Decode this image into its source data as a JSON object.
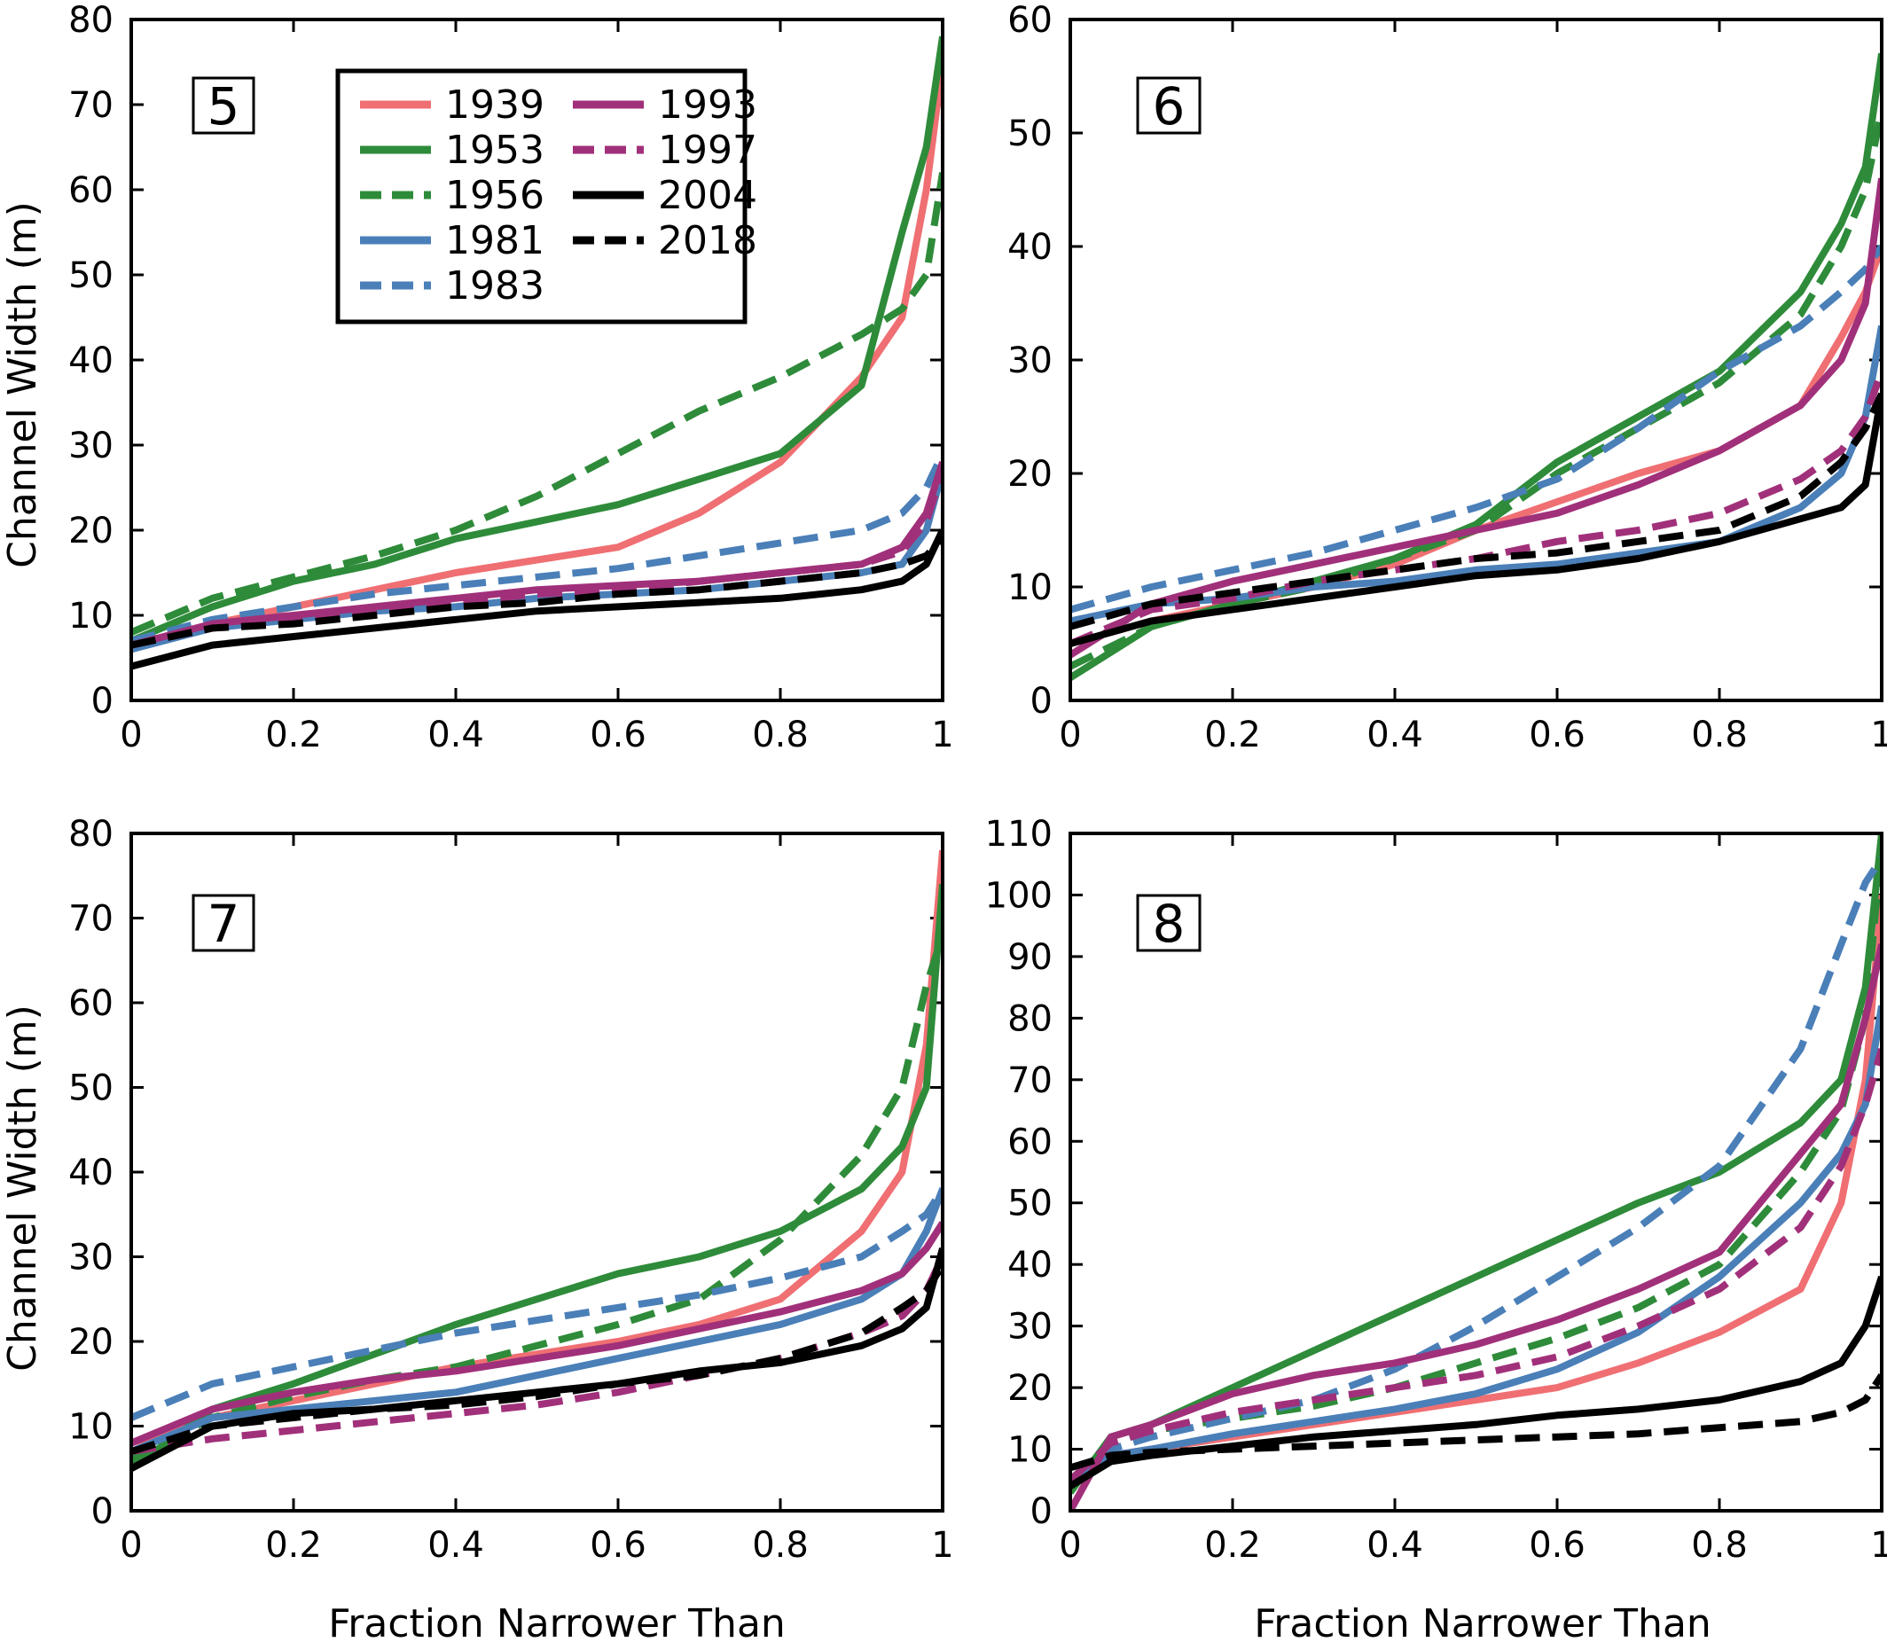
{
  "figure": {
    "xlabel": "Fraction Narrower Than",
    "ylabel": "Channel Width (m)"
  },
  "legend": {
    "entries": [
      {
        "year": "1939",
        "color": "#ef6f73",
        "dash": "solid"
      },
      {
        "year": "1953",
        "color": "#2e8b3a",
        "dash": "solid"
      },
      {
        "year": "1956",
        "color": "#2e8b3a",
        "dash": "dashed"
      },
      {
        "year": "1981",
        "color": "#4a7fb8",
        "dash": "solid"
      },
      {
        "year": "1983",
        "color": "#4a7fb8",
        "dash": "dashed"
      },
      {
        "year": "1993",
        "color": "#a1307a",
        "dash": "solid"
      },
      {
        "year": "1997",
        "color": "#a1307a",
        "dash": "dashed"
      },
      {
        "year": "2004",
        "color": "#000000",
        "dash": "solid"
      },
      {
        "year": "2018",
        "color": "#000000",
        "dash": "dashed"
      }
    ]
  },
  "chart_data": [
    {
      "type": "line",
      "panel_label": "5",
      "xlim": [
        0,
        1
      ],
      "ylim": [
        0,
        80
      ],
      "xticks": [
        "0",
        "0.2",
        "0.4",
        "0.6",
        "0.8",
        "1"
      ],
      "yticks": [
        "0",
        "10",
        "20",
        "30",
        "40",
        "50",
        "60",
        "70",
        "80"
      ],
      "xlabel": "",
      "ylabel": "Channel Width (m)",
      "x": [
        0,
        0.1,
        0.2,
        0.3,
        0.4,
        0.5,
        0.6,
        0.7,
        0.8,
        0.9,
        0.95,
        0.98,
        1.0
      ],
      "series": [
        {
          "name": "1939",
          "values": [
            6,
            9,
            11,
            13,
            15,
            16.5,
            18,
            22,
            28,
            38,
            45,
            60,
            75
          ]
        },
        {
          "name": "1953",
          "values": [
            7,
            11,
            14,
            16,
            19,
            21,
            23,
            26,
            29,
            37,
            55,
            65,
            78
          ]
        },
        {
          "name": "1956",
          "values": [
            8,
            12,
            14.5,
            17,
            20,
            24,
            29,
            34,
            38,
            43,
            46,
            50,
            62
          ]
        },
        {
          "name": "1981",
          "values": [
            6,
            8.5,
            9.5,
            10.5,
            11,
            12,
            12.5,
            13,
            14,
            15,
            16,
            20,
            27
          ]
        },
        {
          "name": "1983",
          "values": [
            7,
            9.5,
            11,
            12.5,
            13.5,
            14.5,
            15.5,
            17,
            18.5,
            20,
            22,
            25,
            29
          ]
        },
        {
          "name": "1993",
          "values": [
            6.5,
            9,
            10,
            11,
            12,
            13,
            13.5,
            14,
            15,
            16,
            18,
            22,
            28
          ]
        },
        {
          "name": "1997",
          "values": [
            6.5,
            8.5,
            9.5,
            10.5,
            11.5,
            12.5,
            13,
            14,
            15,
            16,
            17.5,
            21,
            27
          ]
        },
        {
          "name": "2004",
          "values": [
            4,
            6.5,
            7.5,
            8.5,
            9.5,
            10.5,
            11,
            11.5,
            12,
            13,
            14,
            16,
            20
          ]
        },
        {
          "name": "2018",
          "values": [
            6.5,
            8.5,
            9,
            10,
            11,
            11.5,
            12.5,
            13,
            14,
            15,
            16,
            17,
            19
          ]
        }
      ]
    },
    {
      "type": "line",
      "panel_label": "6",
      "xlim": [
        0,
        1
      ],
      "ylim": [
        0,
        60
      ],
      "xticks": [
        "0",
        "0.2",
        "0.4",
        "0.6",
        "0.8",
        "1"
      ],
      "yticks": [
        "0",
        "10",
        "20",
        "30",
        "40",
        "50",
        "60"
      ],
      "xlabel": "",
      "ylabel": "",
      "x": [
        0,
        0.1,
        0.2,
        0.3,
        0.4,
        0.5,
        0.6,
        0.7,
        0.8,
        0.9,
        0.95,
        0.98,
        1.0
      ],
      "series": [
        {
          "name": "1939",
          "values": [
            5,
            7,
            8.5,
            10,
            12,
            15,
            17.5,
            20,
            22,
            26,
            32,
            36,
            40
          ]
        },
        {
          "name": "1953",
          "values": [
            2,
            6.5,
            8.5,
            10.5,
            12.5,
            15.5,
            21,
            25,
            29,
            36,
            42,
            47,
            57
          ]
        },
        {
          "name": "1956",
          "values": [
            3,
            6.5,
            8.5,
            10,
            12.5,
            15,
            20,
            24,
            28,
            34,
            40,
            45,
            52
          ]
        },
        {
          "name": "1981",
          "values": [
            7,
            8.5,
            9,
            10,
            10.5,
            11.5,
            12,
            13,
            14,
            17,
            20,
            25,
            33
          ]
        },
        {
          "name": "1983",
          "values": [
            8,
            10,
            11.5,
            13,
            15,
            17,
            19.5,
            24,
            29,
            33,
            36,
            38,
            40
          ]
        },
        {
          "name": "1993",
          "values": [
            4,
            8.5,
            10.5,
            12,
            13.5,
            15,
            16.5,
            19,
            22,
            26,
            30,
            35,
            46
          ]
        },
        {
          "name": "1997",
          "values": [
            5,
            8,
            9,
            10.5,
            11.5,
            12.5,
            14,
            15,
            16.5,
            19.5,
            22,
            25,
            29
          ]
        },
        {
          "name": "2004",
          "values": [
            5,
            7,
            8,
            9,
            10,
            11,
            11.5,
            12.5,
            14,
            16,
            17,
            19,
            27
          ]
        },
        {
          "name": "2018",
          "values": [
            6.5,
            8.5,
            9.5,
            10.5,
            11.5,
            12.5,
            13,
            14,
            15,
            18,
            21,
            24,
            27
          ]
        }
      ]
    },
    {
      "type": "line",
      "panel_label": "7",
      "xlim": [
        0,
        1
      ],
      "ylim": [
        0,
        80
      ],
      "xticks": [
        "0",
        "0.2",
        "0.4",
        "0.6",
        "0.8",
        "1"
      ],
      "yticks": [
        "0",
        "10",
        "20",
        "30",
        "40",
        "50",
        "60",
        "70",
        "80"
      ],
      "xlabel": "Fraction Narrower Than",
      "ylabel": "Channel Width (m)",
      "x": [
        0,
        0.1,
        0.2,
        0.3,
        0.4,
        0.5,
        0.6,
        0.7,
        0.8,
        0.9,
        0.95,
        0.98,
        1.0
      ],
      "series": [
        {
          "name": "1939",
          "values": [
            8,
            11,
            13,
            15,
            17,
            18.5,
            20,
            22,
            25,
            33,
            40,
            55,
            78
          ]
        },
        {
          "name": "1953",
          "values": [
            5,
            12,
            15,
            18.5,
            22,
            25,
            28,
            30,
            33,
            38,
            43,
            50,
            74
          ]
        },
        {
          "name": "1956",
          "values": [
            6,
            11,
            13.5,
            15.5,
            17,
            19.5,
            22,
            25,
            32,
            42,
            50,
            62,
            68
          ]
        },
        {
          "name": "1981",
          "values": [
            7,
            11,
            12,
            13,
            14,
            16,
            18,
            20,
            22,
            25,
            28,
            33,
            38
          ]
        },
        {
          "name": "1983",
          "values": [
            11,
            15,
            17,
            19,
            21,
            22.5,
            24,
            25.5,
            27.5,
            30,
            33,
            35,
            38
          ]
        },
        {
          "name": "1993",
          "values": [
            8,
            12,
            14,
            15.5,
            16.5,
            18,
            19.5,
            21.5,
            23.5,
            26,
            28,
            31,
            34
          ]
        },
        {
          "name": "1997",
          "values": [
            7,
            8.5,
            9.5,
            10.5,
            11.5,
            12.5,
            14,
            16,
            18,
            21,
            23,
            26,
            30
          ]
        },
        {
          "name": "2004",
          "values": [
            5,
            10,
            11.5,
            12,
            13,
            14,
            15,
            16.5,
            17.5,
            19.5,
            21.5,
            24,
            31
          ]
        },
        {
          "name": "2018",
          "values": [
            7,
            10,
            11,
            12,
            12.5,
            13.5,
            15,
            16,
            18,
            21,
            24,
            26,
            29
          ]
        }
      ]
    },
    {
      "type": "line",
      "panel_label": "8",
      "xlim": [
        0,
        1
      ],
      "ylim": [
        0,
        110
      ],
      "xticks": [
        "0",
        "0.2",
        "0.4",
        "0.6",
        "0.8",
        "1"
      ],
      "yticks": [
        "0",
        "10",
        "20",
        "30",
        "40",
        "50",
        "60",
        "70",
        "80",
        "90",
        "100",
        "110"
      ],
      "xlabel": "Fraction Narrower Than",
      "ylabel": "",
      "x": [
        0,
        0.05,
        0.1,
        0.2,
        0.3,
        0.4,
        0.5,
        0.6,
        0.7,
        0.8,
        0.9,
        0.95,
        0.98,
        1.0
      ],
      "series": [
        {
          "name": "1939",
          "values": [
            5,
            9,
            10,
            12,
            14,
            16,
            18,
            20,
            24,
            29,
            36,
            50,
            70,
            100
          ]
        },
        {
          "name": "1953",
          "values": [
            3,
            12,
            14,
            20,
            26,
            32,
            38,
            44,
            50,
            55,
            63,
            70,
            85,
            110
          ]
        },
        {
          "name": "1956",
          "values": [
            5,
            11,
            13,
            15,
            17,
            20,
            24,
            28,
            33,
            40,
            55,
            65,
            80,
            108
          ]
        },
        {
          "name": "1981",
          "values": [
            5,
            9,
            10,
            12.5,
            14.5,
            16.5,
            19,
            23,
            29,
            38,
            50,
            58,
            66,
            82
          ]
        },
        {
          "name": "1983",
          "values": [
            5,
            10,
            12,
            15,
            18,
            23,
            30,
            38,
            46,
            56,
            75,
            92,
            102,
            106
          ]
        },
        {
          "name": "1993",
          "values": [
            0,
            12,
            14,
            19,
            22,
            24,
            27,
            31,
            36,
            42,
            58,
            66,
            80,
            92
          ]
        },
        {
          "name": "1997",
          "values": [
            5,
            11,
            13,
            16,
            18,
            20,
            22,
            25,
            30,
            36,
            46,
            56,
            66,
            75
          ]
        },
        {
          "name": "2004",
          "values": [
            4,
            8,
            9,
            10.5,
            12,
            13,
            14,
            15.5,
            16.5,
            18,
            21,
            24,
            30,
            38
          ]
        },
        {
          "name": "2018",
          "values": [
            7,
            9,
            9.5,
            10,
            10.5,
            11,
            11.5,
            12,
            12.5,
            13.5,
            14.5,
            16,
            18,
            22
          ]
        }
      ]
    }
  ]
}
